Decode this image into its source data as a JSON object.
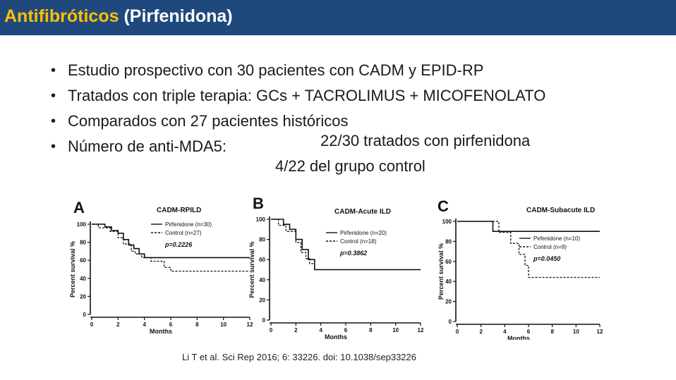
{
  "header": {
    "title_accent": "Antifibróticos",
    "title_rest": " (Pirfenidona)",
    "bg_color": "#1f497d",
    "accent_color": "#ffc000"
  },
  "bullets": [
    "Estudio prospectivo con 30 pacientes con CADM y EPID-RP",
    "Tratados con triple terapia: GCs + TACROLIMUS + MICOFENOLATO",
    "Comparados con 27 pacientes históricos",
    "Número de anti-MDA5:"
  ],
  "anti_mda5": {
    "line1": "22/30 tratados con pirfenidona",
    "line2": "4/22 del grupo control"
  },
  "citation": "Li T et al. Sci Rep 2016; 6: 33226.   doi: 10.1038/sep33226",
  "chart_data": [
    {
      "type": "line",
      "panel": "A",
      "title": "CADM-RPILD",
      "xlabel": "Months",
      "ylabel": "Percent survival %",
      "xlim": [
        0,
        12
      ],
      "ylim": [
        0,
        100
      ],
      "xticks": [
        0,
        2,
        4,
        6,
        8,
        10,
        12
      ],
      "yticks": [
        0,
        20,
        40,
        60,
        80,
        100
      ],
      "legend": "top-right",
      "p_value": "p=0.2226",
      "series": [
        {
          "name": "Pirfenidone (n=30)",
          "style": "solid",
          "x": [
            0,
            1,
            1,
            1.5,
            1.5,
            2,
            2,
            2.4,
            2.4,
            2.8,
            2.8,
            3.2,
            3.2,
            3.6,
            3.6,
            4,
            4,
            12
          ],
          "y": [
            100,
            100,
            97,
            97,
            93,
            93,
            90,
            90,
            83,
            83,
            77,
            77,
            73,
            73,
            67,
            67,
            63,
            63
          ]
        },
        {
          "name": "Control (n=27)",
          "style": "dashed",
          "x": [
            0,
            0.5,
            0.5,
            1.4,
            1.4,
            2,
            2,
            2.4,
            2.4,
            3,
            3,
            3.3,
            3.3,
            3.8,
            3.8,
            4.5,
            4.5,
            5.5,
            5.5,
            6,
            6,
            12
          ],
          "y": [
            100,
            100,
            96,
            96,
            92,
            92,
            85,
            85,
            78,
            78,
            70,
            70,
            67,
            67,
            63,
            63,
            59,
            59,
            52,
            52,
            48,
            48
          ]
        }
      ]
    },
    {
      "type": "line",
      "panel": "B",
      "title": "CADM-Acute ILD",
      "xlabel": "Months",
      "ylabel": "Percent survival %",
      "xlim": [
        0,
        12
      ],
      "ylim": [
        0,
        100
      ],
      "xticks": [
        0,
        2,
        4,
        6,
        8,
        10,
        12
      ],
      "yticks": [
        0,
        20,
        40,
        60,
        80,
        100
      ],
      "legend": "top-right",
      "p_value": "p=0.3862",
      "series": [
        {
          "name": "Pirfenidone (n=20)",
          "style": "solid",
          "x": [
            0,
            1,
            1,
            1.5,
            1.5,
            2,
            2,
            2.5,
            2.5,
            3,
            3,
            3.5,
            3.5,
            12
          ],
          "y": [
            100,
            100,
            95,
            95,
            90,
            90,
            80,
            80,
            70,
            70,
            60,
            60,
            50,
            50
          ]
        },
        {
          "name": "Control (n=18)",
          "style": "dashed",
          "x": [
            0,
            0.6,
            0.6,
            1.2,
            1.2,
            2,
            2,
            2.4,
            2.4,
            2.8,
            2.8,
            3.1,
            3.1,
            3.5,
            3.5,
            4,
            4,
            12
          ],
          "y": [
            100,
            100,
            94,
            94,
            88,
            88,
            77,
            77,
            67,
            67,
            61,
            61,
            56,
            56,
            50,
            50,
            50,
            50
          ]
        }
      ]
    },
    {
      "type": "line",
      "panel": "C",
      "title": "CADM-Subacute ILD",
      "xlabel": "Months",
      "ylabel": "Percent survival %",
      "xlim": [
        0,
        12
      ],
      "ylim": [
        0,
        100
      ],
      "xticks": [
        0,
        2,
        4,
        6,
        8,
        10,
        12
      ],
      "yticks": [
        0,
        20,
        40,
        60,
        80,
        100
      ],
      "legend": "top-right",
      "p_value": "p=0.0450",
      "series": [
        {
          "name": "Pirfenidone (n=10)",
          "style": "solid",
          "x": [
            0,
            3,
            3,
            12
          ],
          "y": [
            100,
            100,
            90,
            90
          ]
        },
        {
          "name": "Control (n=9)",
          "style": "dashed",
          "x": [
            0,
            3.5,
            3.5,
            4.5,
            4.5,
            5.2,
            5.2,
            5.7,
            5.7,
            6,
            6,
            12
          ],
          "y": [
            100,
            100,
            89,
            89,
            78,
            78,
            67,
            67,
            56,
            56,
            44,
            44
          ]
        }
      ]
    }
  ]
}
